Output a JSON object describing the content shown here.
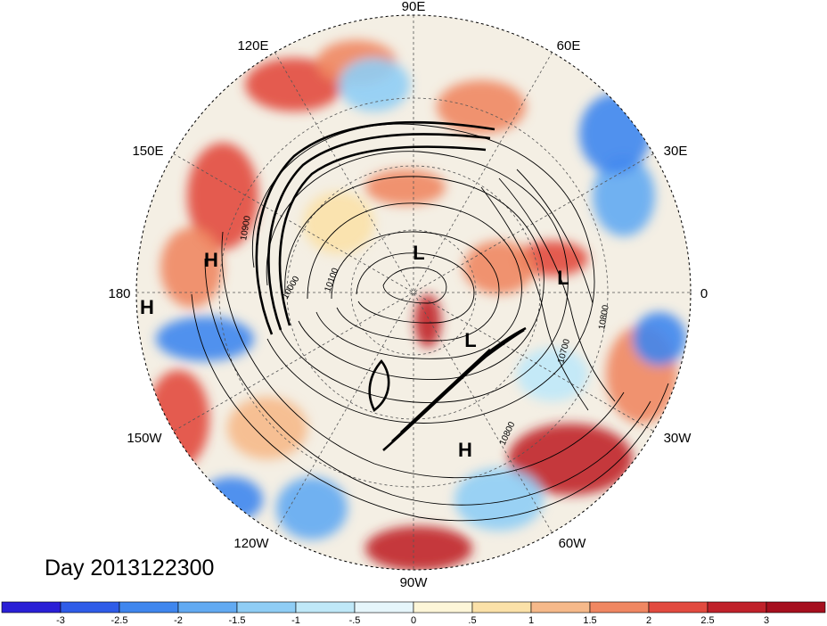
{
  "map": {
    "projection": "north-polar-stereographic",
    "date_label": "Day 2013122300",
    "longitude_labels": {
      "lon_90e": "90E",
      "lon_60e": "60E",
      "lon_30e": "30E",
      "lon_0": "0",
      "lon_30w": "30W",
      "lon_60w": "60W",
      "lon_90w": "90W",
      "lon_120w": "120W",
      "lon_150w": "150W",
      "lon_180": "180",
      "lon_150e": "150E",
      "lon_120e": "120E"
    },
    "pressure_systems": [
      {
        "type": "H",
        "region": "north-pacific"
      },
      {
        "type": "H",
        "region": "dateline"
      },
      {
        "type": "L",
        "region": "arctic-siberia"
      },
      {
        "type": "L",
        "region": "north-atlantic-europe"
      },
      {
        "type": "L",
        "region": "greenland-baffin"
      },
      {
        "type": "H",
        "region": "subtropical-atlantic"
      }
    ],
    "contour_labels": [
      "10900",
      "10000",
      "10100",
      "10700",
      "10800",
      "10800"
    ],
    "colors": {
      "deep_blue": "#2a1fd6",
      "dark_red": "#a60f1e",
      "neutral": "#ffffff"
    }
  },
  "colorbar": {
    "ticks": [
      "-3",
      "-2.5",
      "-2",
      "-1.5",
      "-1",
      "-.5",
      "0",
      ".5",
      "1",
      "1.5",
      "2",
      "2.5",
      "3"
    ],
    "colors": [
      "#2a1fd6",
      "#2f5ce8",
      "#3f86ee",
      "#62aaf2",
      "#8fcdf5",
      "#bfe8f8",
      "#e6f6fb",
      "#fdf6d8",
      "#fbe1a8",
      "#f6b98a",
      "#f08762",
      "#e24a3f",
      "#c0212a",
      "#a60f1e"
    ]
  }
}
